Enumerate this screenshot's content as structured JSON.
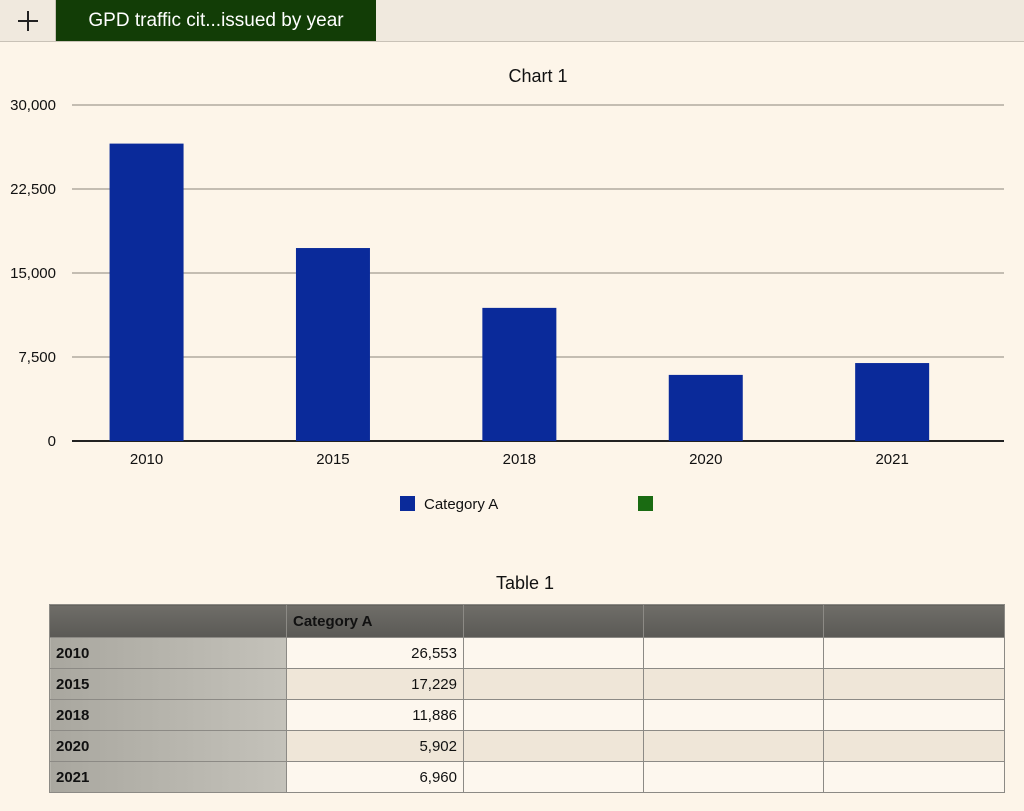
{
  "tabbar": {
    "add_icon": "plus-icon",
    "active_tab_label": "GPD traffic cit...issued by year",
    "active_tab_color": "#123d06"
  },
  "chart_data": {
    "type": "bar",
    "title": "Chart 1",
    "categories": [
      "2010",
      "2015",
      "2018",
      "2020",
      "2021"
    ],
    "series": [
      {
        "name": "Category A",
        "values": [
          26553,
          17229,
          11886,
          5902,
          6960
        ],
        "color": "#0a2a9a"
      }
    ],
    "legend": [
      "Category A",
      ""
    ],
    "legend_colors": [
      "#0a2a9a",
      "#1a6b12"
    ],
    "legend_position": "bottom",
    "ylim": [
      0,
      30000
    ],
    "yticks": [
      0,
      7500,
      15000,
      22500,
      30000
    ],
    "ytick_labels": [
      "0",
      "7,500",
      "15,000",
      "22,500",
      "30,000"
    ],
    "grid": true,
    "xlabel": "",
    "ylabel": ""
  },
  "table": {
    "title": "Table 1",
    "columns": [
      "",
      "Category A",
      "",
      "",
      ""
    ],
    "rows": [
      {
        "label": "2010",
        "value": "26,553"
      },
      {
        "label": "2015",
        "value": "17,229"
      },
      {
        "label": "2018",
        "value": "11,886"
      },
      {
        "label": "2020",
        "value": "5,902"
      },
      {
        "label": "2021",
        "value": "6,960"
      }
    ]
  }
}
